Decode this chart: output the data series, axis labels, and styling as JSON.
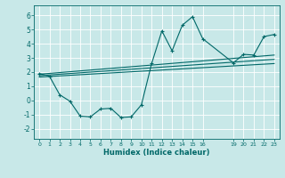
{
  "background_color": "#c8e8e8",
  "grid_color": "#ffffff",
  "line_color": "#006868",
  "xlabel": "Humidex (Indice chaleur)",
  "xlim": [
    -0.5,
    23.5
  ],
  "ylim": [
    -2.7,
    6.7
  ],
  "xticks": [
    0,
    1,
    2,
    3,
    4,
    5,
    6,
    7,
    8,
    9,
    10,
    11,
    12,
    13,
    14,
    15,
    16,
    19,
    20,
    21,
    22,
    23
  ],
  "yticks": [
    -2,
    -1,
    0,
    1,
    2,
    3,
    4,
    5,
    6
  ],
  "series": [
    {
      "x": [
        0,
        1,
        2,
        3,
        4,
        5,
        6,
        7,
        8,
        9,
        10,
        11,
        12,
        13,
        14,
        15,
        16,
        19,
        20,
        21,
        22,
        23
      ],
      "y": [
        1.9,
        1.7,
        0.4,
        -0.05,
        -1.1,
        -1.15,
        -0.6,
        -0.55,
        -1.2,
        -1.15,
        -0.3,
        2.6,
        4.9,
        3.5,
        5.3,
        5.9,
        4.35,
        2.65,
        3.25,
        3.2,
        4.5,
        4.65
      ]
    },
    {
      "x": [
        0,
        23
      ],
      "y": [
        1.85,
        3.2
      ]
    },
    {
      "x": [
        0,
        23
      ],
      "y": [
        1.75,
        2.9
      ]
    },
    {
      "x": [
        0,
        23
      ],
      "y": [
        1.65,
        2.6
      ]
    }
  ]
}
